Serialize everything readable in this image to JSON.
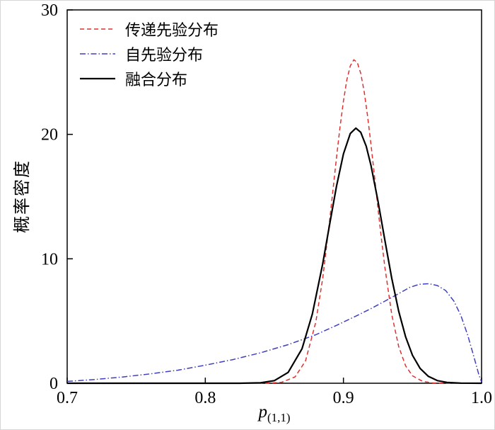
{
  "chart_data": {
    "type": "line",
    "title": "",
    "xlabel_main": "p",
    "xlabel_sub": "(1,1)",
    "ylabel": "概率密度",
    "xlim": [
      0.7,
      1.0
    ],
    "ylim": [
      0,
      30
    ],
    "x_ticks": [
      0.7,
      0.8,
      0.9,
      1.0
    ],
    "x_tick_labels": [
      "0.7",
      "0.8",
      "0.9",
      "1.0"
    ],
    "y_ticks": [
      0,
      10,
      20,
      30
    ],
    "y_tick_labels": [
      "0",
      "10",
      "20",
      "30"
    ],
    "grid": false,
    "legend_position": "top-left",
    "axis_color": "#000000",
    "series": [
      {
        "name": "传递先验分布",
        "color": "#e03030",
        "style": "dashed",
        "dash": "6,4",
        "width": 1.5,
        "x": [
          0.7,
          0.8,
          0.83,
          0.845,
          0.855,
          0.865,
          0.8725,
          0.88,
          0.885,
          0.89,
          0.8925,
          0.895,
          0.8975,
          0.9,
          0.9025,
          0.905,
          0.9075,
          0.91,
          0.9125,
          0.915,
          0.9175,
          0.92,
          0.9225,
          0.925,
          0.9275,
          0.93,
          0.935,
          0.94,
          0.945,
          0.95,
          0.9575,
          0.965,
          0.98,
          1.0
        ],
        "y": [
          0,
          0,
          0,
          0.01,
          0.07,
          0.51,
          1.79,
          4.91,
          8.45,
          13.06,
          15.6,
          18.16,
          20.57,
          22.69,
          24.38,
          25.51,
          25.99,
          25.78,
          24.91,
          23.43,
          21.46,
          19.15,
          16.63,
          14.07,
          11.59,
          9.3,
          5.52,
          2.95,
          1.4,
          0.6,
          0.14,
          0.02,
          0,
          0
        ]
      },
      {
        "name": "自先验分布",
        "color": "#3f3fbf",
        "style": "dash-dot",
        "dash": "8,3,1.5,3",
        "width": 1.5,
        "x": [
          0.7,
          0.72,
          0.74,
          0.76,
          0.78,
          0.8,
          0.82,
          0.84,
          0.86,
          0.88,
          0.895,
          0.91,
          0.92,
          0.93,
          0.94,
          0.948,
          0.955,
          0.962,
          0.968,
          0.974,
          0.98,
          0.985,
          0.99,
          0.994,
          0.998,
          1.0
        ],
        "y": [
          0.15,
          0.3,
          0.5,
          0.75,
          1.05,
          1.45,
          1.9,
          2.45,
          3.1,
          3.9,
          4.65,
          5.45,
          6.0,
          6.6,
          7.2,
          7.7,
          7.95,
          8.0,
          7.85,
          7.45,
          6.6,
          5.45,
          3.85,
          2.3,
          0.7,
          0.1
        ]
      },
      {
        "name": "融合分布",
        "color": "#000000",
        "style": "solid",
        "dash": "",
        "width": 2.2,
        "x": [
          0.7,
          0.8,
          0.825,
          0.84,
          0.85,
          0.86,
          0.87,
          0.8775,
          0.885,
          0.89,
          0.895,
          0.9,
          0.905,
          0.909,
          0.9125,
          0.9165,
          0.92,
          0.925,
          0.93,
          0.935,
          0.94,
          0.945,
          0.95,
          0.9555,
          0.9615,
          0.968,
          0.975,
          0.985,
          1.0
        ],
        "y": [
          0,
          0,
          0,
          0.04,
          0.21,
          0.87,
          2.77,
          5.56,
          9.61,
          12.75,
          15.84,
          18.43,
          20.07,
          20.5,
          20.17,
          19.04,
          17.48,
          14.64,
          11.48,
          8.43,
          5.79,
          3.73,
          2.25,
          1.19,
          0.55,
          0.21,
          0.07,
          0.01,
          0
        ]
      }
    ]
  }
}
